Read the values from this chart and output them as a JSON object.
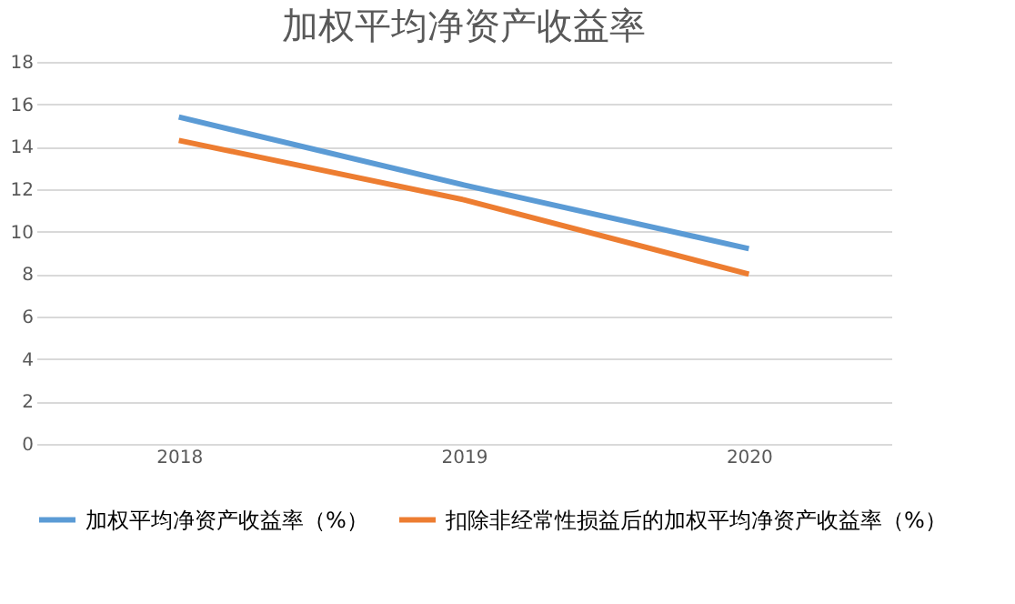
{
  "chart_data": {
    "type": "line",
    "title": "加权平均净资产收益率",
    "categories": [
      "2018",
      "2019",
      "2020"
    ],
    "series": [
      {
        "name": "加权平均净资产收益率（%）",
        "color": "#5b9bd5",
        "values": [
          15.4,
          12.2,
          9.2
        ]
      },
      {
        "name": "扣除非经常性损益后的加权平均净资产收益率（%）",
        "color": "#ed7d31",
        "values": [
          14.3,
          11.5,
          8.0
        ]
      }
    ],
    "ylim": [
      0,
      18
    ],
    "yticks": [
      0,
      2,
      4,
      6,
      8,
      10,
      12,
      14,
      16,
      18
    ],
    "grid": "y",
    "legend": "bottom",
    "marker": "none",
    "line_style": "solid"
  }
}
